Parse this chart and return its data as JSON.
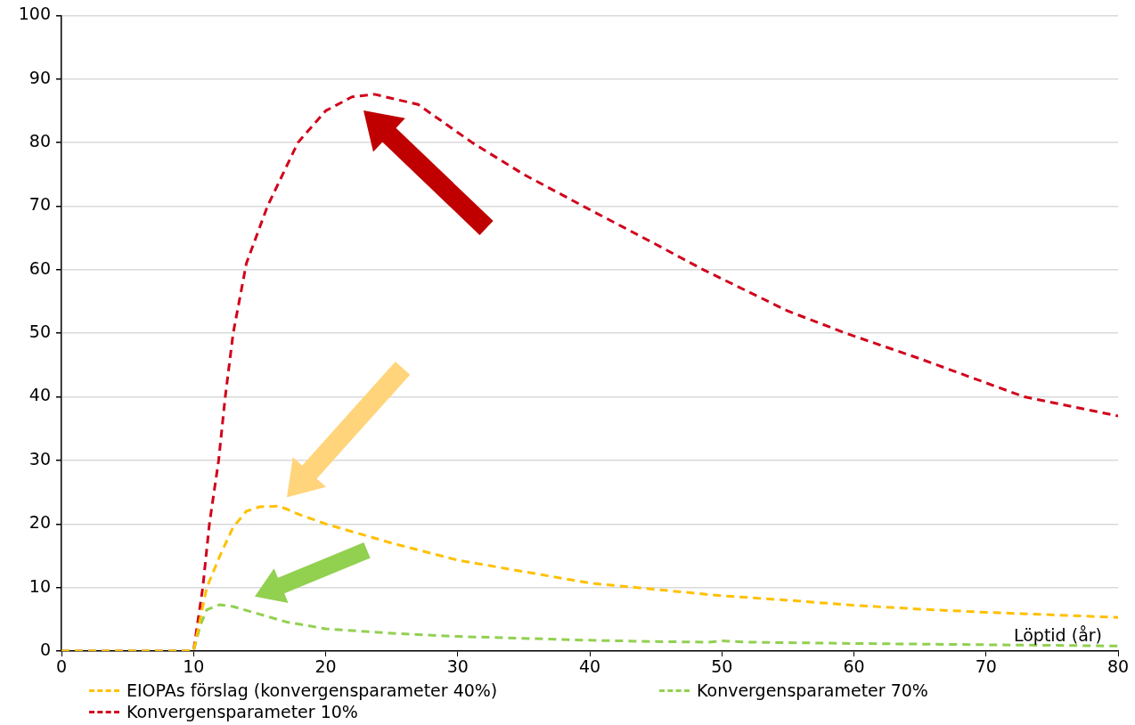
{
  "chart_data": {
    "type": "line",
    "xlabel": "Löptid (år)",
    "xlim": [
      0,
      80
    ],
    "xticks": [
      0,
      10,
      20,
      30,
      40,
      50,
      60,
      70,
      80
    ],
    "ylim": [
      0,
      100
    ],
    "yticks": [
      0,
      10,
      20,
      30,
      40,
      50,
      60,
      70,
      80,
      90,
      100
    ],
    "grid": "y",
    "legend": "bottom",
    "marker": "none",
    "line_style": "dashed",
    "series": [
      {
        "name": "EIOPAs förslag (konvergensparameter 40%)",
        "color": "#ffc000",
        "x": [
          0,
          5,
          10,
          10.5,
          11,
          12,
          13,
          14,
          15,
          16.5,
          18,
          20,
          25,
          30,
          35,
          40,
          45,
          50,
          55,
          60,
          65,
          70,
          75,
          80
        ],
        "values": [
          0,
          0,
          0,
          5,
          10,
          15,
          19.5,
          22,
          22.7,
          22.8,
          21.5,
          20,
          17,
          14.3,
          12.5,
          10.7,
          9.7,
          8.7,
          8,
          7.2,
          6.6,
          6.1,
          5.7,
          5.3
        ]
      },
      {
        "name": "Konvergensparameter 70%",
        "color": "#92d050",
        "x": [
          0,
          5,
          10,
          10.5,
          11,
          12,
          13,
          15,
          17,
          20,
          25,
          30,
          35,
          40,
          45,
          49,
          50,
          52,
          60,
          70,
          80
        ],
        "values": [
          0,
          0,
          0,
          4,
          6.5,
          7.3,
          7,
          5.8,
          4.6,
          3.5,
          2.8,
          2.3,
          2,
          1.7,
          1.5,
          1.4,
          1.6,
          1.4,
          1.2,
          1,
          0.8
        ]
      },
      {
        "name": "Konvergensparameter 10%",
        "color": "#d0021b",
        "x": [
          0,
          5,
          10,
          10.7,
          11.2,
          11.9,
          12.4,
          13,
          14,
          15.6,
          17.9,
          20,
          22,
          23.7,
          27,
          31.1,
          35,
          39.5,
          45,
          48.6,
          55,
          59.4,
          65,
          72.9,
          80
        ],
        "values": [
          0,
          0,
          0,
          10,
          20,
          30,
          40,
          50,
          61,
          70,
          80,
          85,
          87.2,
          87.6,
          86,
          80,
          75,
          70,
          64,
          60,
          53.5,
          50,
          46,
          40,
          37
        ]
      }
    ]
  }
}
